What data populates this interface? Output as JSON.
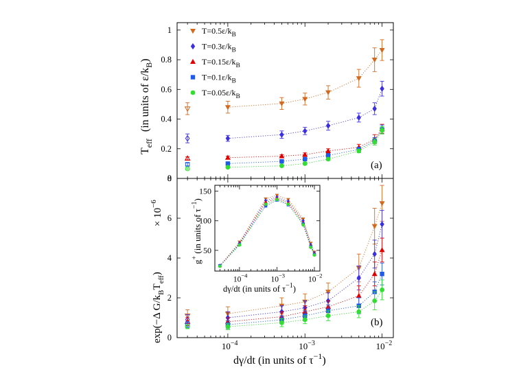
{
  "chart_data": [
    {
      "id": "a",
      "type": "scatter",
      "panel_label": "(a)",
      "ylabel": "T",
      "ylabel_sub": "eff",
      "ylabel_units": "(in units of  ε/k",
      "ylabel_units_sub": "B",
      "ylabel_units_close": ")",
      "xscale": "log",
      "xlim": [
        2.2e-05,
        0.014
      ],
      "ylim": [
        0,
        1.05
      ],
      "yticks": [
        0,
        0.2,
        0.4,
        0.6,
        0.8,
        1
      ],
      "ytick_labels": [
        "0",
        "0.2",
        "0.4",
        "0.6",
        "0.8",
        "1"
      ],
      "legend_position": "top-left",
      "series": [
        {
          "name": "T=0.5ε/k",
          "name_sub": "B",
          "color": "#D2691E",
          "marker": "triangle-down",
          "x": [
            0.0001,
            0.0005,
            0.001,
            0.002,
            0.005,
            0.008,
            0.01
          ],
          "y": [
            0.48,
            0.505,
            0.535,
            0.58,
            0.675,
            0.8,
            0.865
          ],
          "err": [
            0.04,
            0.04,
            0.04,
            0.045,
            0.06,
            0.08,
            0.07
          ],
          "open_x": 3e-05,
          "open_y": 0.47,
          "open_err": 0.04
        },
        {
          "name": "T=0.3ε/k",
          "name_sub": "B",
          "color": "#3B2FE0",
          "marker": "diamond",
          "x": [
            0.0001,
            0.0005,
            0.001,
            0.002,
            0.005,
            0.008,
            0.01
          ],
          "y": [
            0.27,
            0.295,
            0.32,
            0.355,
            0.41,
            0.47,
            0.605
          ],
          "err": [
            0.02,
            0.025,
            0.025,
            0.03,
            0.03,
            0.04,
            0.05
          ],
          "open_x": 3e-05,
          "open_y": 0.27,
          "open_err": 0.03
        },
        {
          "name": "T=0.15ε/k",
          "name_sub": "B",
          "color": "#E00000",
          "marker": "triangle-up",
          "x": [
            0.0001,
            0.0005,
            0.001,
            0.002,
            0.005,
            0.008,
            0.01
          ],
          "y": [
            0.14,
            0.15,
            0.16,
            0.185,
            0.21,
            0.265,
            0.335
          ],
          "err": [
            0.01,
            0.01,
            0.012,
            0.015,
            0.02,
            0.03,
            0.03
          ],
          "open_x": 3e-05,
          "open_y": 0.135,
          "open_err": 0.01
        },
        {
          "name": "T=0.1ε/k",
          "name_sub": "B",
          "color": "#1E5BE8",
          "marker": "square",
          "x": [
            0.0001,
            0.0005,
            0.001,
            0.002,
            0.005,
            0.008,
            0.01
          ],
          "y": [
            0.1,
            0.115,
            0.13,
            0.155,
            0.195,
            0.255,
            0.33
          ],
          "err": [
            0.01,
            0.01,
            0.01,
            0.012,
            0.015,
            0.02,
            0.03
          ],
          "open_x": 3e-05,
          "open_y": 0.095,
          "open_err": 0.01
        },
        {
          "name": "T=0.05ε/k",
          "name_sub": "B",
          "color": "#33DD33",
          "marker": "circle",
          "x": [
            0.0001,
            0.0005,
            0.001,
            0.002,
            0.005,
            0.008,
            0.01
          ],
          "y": [
            0.075,
            0.085,
            0.1,
            0.13,
            0.185,
            0.245,
            0.325
          ],
          "err": [
            0.005,
            0.005,
            0.008,
            0.01,
            0.012,
            0.02,
            0.025
          ],
          "open_x": 3e-05,
          "open_y": 0.065,
          "open_err": 0.005
        }
      ]
    },
    {
      "id": "b",
      "type": "scatter",
      "panel_label": "(b)",
      "ylabel": "exp(−Δ G/k",
      "ylabel_sub1": "B",
      "ylabel_mid": "T",
      "ylabel_sub2": "eff",
      "ylabel_close": ")",
      "multiplier": "× 10",
      "multiplier_exp": "−6",
      "xlabel": "dγ/dt   (in units of  τ",
      "xlabel_exp": "−1",
      "xlabel_close": ")",
      "xscale": "log",
      "xlim": [
        2.2e-05,
        0.014
      ],
      "xticks": [
        0.0001,
        0.001,
        0.01
      ],
      "xtick_base": "10",
      "xtick_exps": [
        "−4",
        "−3",
        "−2"
      ],
      "ylim": [
        0,
        8
      ],
      "yticks": [
        0,
        2,
        4,
        6,
        8
      ],
      "ytick_labels": [
        "0",
        "2",
        "4",
        "6",
        "8"
      ],
      "series": [
        {
          "name": "T=0.5ε/kB",
          "color": "#D2691E",
          "marker": "triangle-down",
          "x": [
            0.0001,
            0.0005,
            0.001,
            0.002,
            0.005,
            0.008,
            0.01
          ],
          "y": [
            1.2,
            1.6,
            1.8,
            2.3,
            3.5,
            5.6,
            6.75
          ],
          "err": [
            0.35,
            0.4,
            0.4,
            0.45,
            0.7,
            0.9,
            0.9
          ],
          "open_x": 3e-05,
          "open_y": 1.1,
          "open_err": 0.3
        },
        {
          "name": "T=0.3ε/kB",
          "color": "#3B2FE0",
          "marker": "diamond",
          "x": [
            0.0001,
            0.0005,
            0.001,
            0.002,
            0.005,
            0.008,
            0.01
          ],
          "y": [
            1.0,
            1.3,
            1.5,
            1.85,
            3.0,
            4.2,
            5.7
          ],
          "err": [
            0.3,
            0.3,
            0.35,
            0.4,
            0.6,
            0.7,
            0.7
          ],
          "open_x": 3e-05,
          "open_y": 0.9,
          "open_err": 0.25
        },
        {
          "name": "T=0.15ε/kB",
          "color": "#E00000",
          "marker": "triangle-up",
          "x": [
            0.0001,
            0.0005,
            0.001,
            0.002,
            0.005,
            0.008,
            0.01
          ],
          "y": [
            0.8,
            1.05,
            1.3,
            1.55,
            2.1,
            3.2,
            4.4
          ],
          "err": [
            0.2,
            0.25,
            0.3,
            0.3,
            0.5,
            0.6,
            0.6
          ],
          "open_x": 3e-05,
          "open_y": 0.8,
          "open_err": 0.2
        },
        {
          "name": "T=0.1ε/kB",
          "color": "#1E5BE8",
          "marker": "square",
          "x": [
            0.0001,
            0.0005,
            0.001,
            0.002,
            0.005,
            0.008,
            0.01
          ],
          "y": [
            0.65,
            0.9,
            1.1,
            1.35,
            1.6,
            2.3,
            3.2
          ],
          "err": [
            0.2,
            0.2,
            0.25,
            0.3,
            0.4,
            0.5,
            0.55
          ],
          "open_x": 3e-05,
          "open_y": 0.65,
          "open_err": 0.15
        },
        {
          "name": "T=0.05ε/kB",
          "color": "#33DD33",
          "marker": "circle",
          "x": [
            0.0001,
            0.0005,
            0.001,
            0.002,
            0.005,
            0.008,
            0.01
          ],
          "y": [
            0.55,
            0.75,
            0.9,
            1.1,
            1.3,
            1.85,
            2.4
          ],
          "err": [
            0.15,
            0.2,
            0.2,
            0.25,
            0.3,
            0.45,
            0.5
          ],
          "open_x": 3e-05,
          "open_y": 0.55,
          "open_err": 0.1
        }
      ]
    },
    {
      "id": "inset",
      "type": "line",
      "ylabel": "g",
      "ylabel_sup": "+",
      "ylabel_units": " (in units of  τ",
      "ylabel_units_exp": "−1",
      "ylabel_units_close": ")",
      "xlabel": "dγ/dt   (in units of  τ",
      "xlabel_exp": "−1",
      "xlabel_close": ")",
      "xscale": "log",
      "xlim": [
        2.2e-05,
        0.014
      ],
      "xticks": [
        0.0001,
        0.001,
        0.01
      ],
      "xtick_base": "10",
      "xtick_exps": [
        "−4",
        "−3",
        "−2"
      ],
      "ylim": [
        15,
        160
      ],
      "yticks": [
        50,
        100,
        150
      ],
      "ytick_labels": [
        "50",
        "100",
        "150"
      ],
      "x": [
        3e-05,
        0.0001,
        0.0005,
        0.001,
        0.002,
        0.005,
        0.008,
        0.01
      ],
      "series": [
        {
          "name": "T=0.5ε/kB",
          "color": "#D2691E",
          "marker": "triangle-down",
          "y": [
            24,
            64,
            137,
            143,
            136,
            103,
            62,
            47
          ]
        },
        {
          "name": "T=0.3ε/kB",
          "color": "#3B2FE0",
          "marker": "diamond",
          "y": [
            24,
            62,
            134,
            140,
            133,
            100,
            59,
            45
          ]
        },
        {
          "name": "T=0.15ε/kB",
          "color": "#E00000",
          "marker": "triangle-up",
          "y": [
            24,
            61,
            131,
            138,
            130,
            97,
            57,
            44
          ]
        },
        {
          "name": "T=0.1ε/kB",
          "color": "#1E5BE8",
          "marker": "square",
          "y": [
            24,
            60,
            125,
            135,
            127,
            95,
            56,
            43
          ]
        },
        {
          "name": "T=0.05ε/kB",
          "color": "#33DD33",
          "marker": "circle",
          "y": [
            23,
            59,
            128,
            136,
            128,
            93,
            55,
            42
          ]
        }
      ]
    }
  ]
}
